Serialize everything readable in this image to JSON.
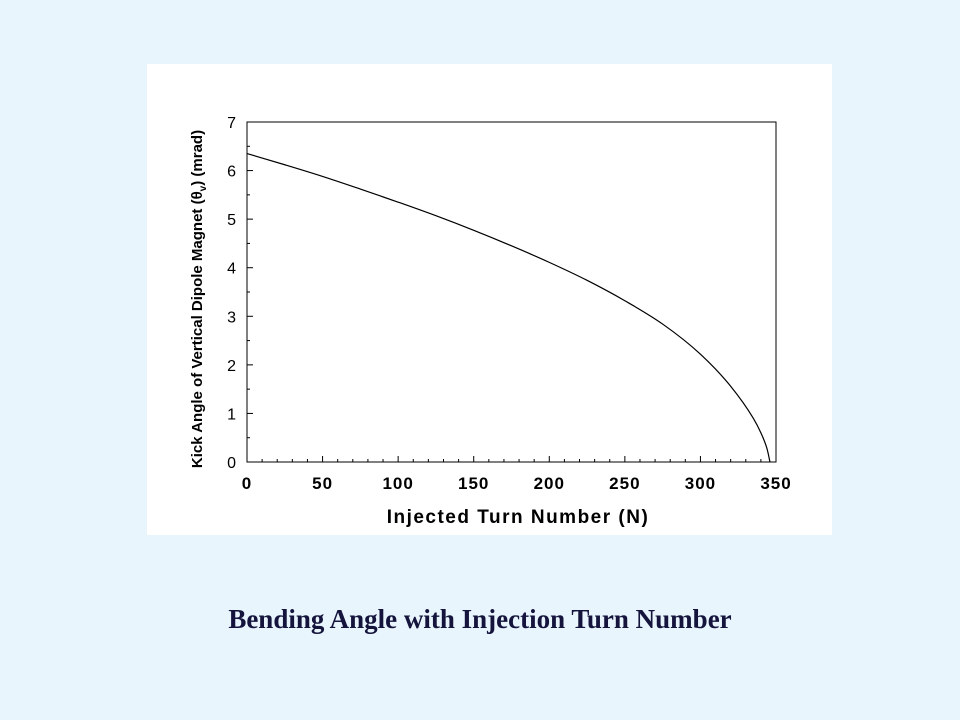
{
  "caption": "Bending Angle with Injection Turn Number",
  "chart_data": {
    "type": "line",
    "xlabel": "Injected Turn Number (N)",
    "ylabel_parts": {
      "before": "Kick Angle of Vertical Dipole Magnet (",
      "symbol": "θ",
      "subscript": "v",
      "after": ") (mrad)"
    },
    "xlim": [
      0,
      350
    ],
    "ylim": [
      0,
      7
    ],
    "xticks": [
      0,
      50,
      100,
      150,
      200,
      250,
      300,
      350
    ],
    "yticks": [
      0,
      1,
      2,
      3,
      4,
      5,
      6,
      7
    ],
    "x_minor_step": 10,
    "y_minor_step": 0.5,
    "grid": false,
    "series": [
      {
        "color": "#000000",
        "x": [
          0,
          25,
          50,
          75,
          100,
          125,
          150,
          175,
          200,
          225,
          250,
          275,
          300,
          320,
          335,
          340,
          344,
          345,
          346
        ],
        "y": [
          6.35,
          6.12,
          5.88,
          5.62,
          5.35,
          5.07,
          4.77,
          4.45,
          4.11,
          3.74,
          3.32,
          2.84,
          2.22,
          1.56,
          0.9,
          0.6,
          0.28,
          0.15,
          0.0
        ]
      }
    ]
  }
}
